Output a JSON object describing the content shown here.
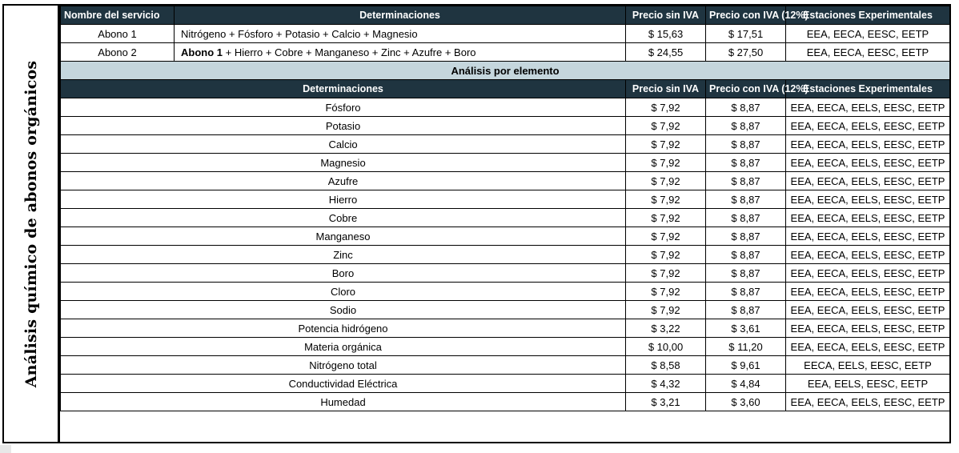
{
  "side_title": "Análisis químico de abonos orgánicos",
  "header1": {
    "service": "Nombre del servicio",
    "determinations": "Determinaciones",
    "price_no_iva": "Precio sin IVA",
    "price_iva": "Precio con IVA (12%)",
    "stations": "Estaciones Experimentales"
  },
  "abonos": [
    {
      "name": "Abono 1",
      "det_bold": "",
      "det": "Nitrógeno + Fósforo + Potasio + Calcio + Magnesio",
      "price": "$ 15,63",
      "price_iva": "$ 17,51",
      "stations": "EEA, EECA, EESC, EETP"
    },
    {
      "name": "Abono 2",
      "det_bold": "Abono 1",
      "det": " + Hierro + Cobre + Manganeso + Zinc + Azufre + Boro",
      "price": "$ 24,55",
      "price_iva": "$ 27,50",
      "stations": "EEA, EECA, EESC, EETP"
    }
  ],
  "section_title": "Análisis por elemento",
  "header2": {
    "determinations": "Determinaciones",
    "price_no_iva": "Precio sin IVA",
    "price_iva": "Precio con IVA (12%)",
    "stations": "Estaciones Experimentales"
  },
  "elements": [
    {
      "name": "Fósforo",
      "price": "$ 7,92",
      "price_iva": "$ 8,87",
      "stations": "EEA, EECA, EELS, EESC, EETP"
    },
    {
      "name": "Potasio",
      "price": "$ 7,92",
      "price_iva": "$ 8,87",
      "stations": "EEA, EECA, EELS, EESC, EETP"
    },
    {
      "name": "Calcio",
      "price": "$ 7,92",
      "price_iva": "$ 8,87",
      "stations": "EEA, EECA, EELS, EESC, EETP"
    },
    {
      "name": "Magnesio",
      "price": "$ 7,92",
      "price_iva": "$ 8,87",
      "stations": "EEA, EECA, EELS, EESC, EETP"
    },
    {
      "name": "Azufre",
      "price": "$ 7,92",
      "price_iva": "$ 8,87",
      "stations": "EEA, EECA, EELS, EESC, EETP"
    },
    {
      "name": "Hierro",
      "price": "$ 7,92",
      "price_iva": "$ 8,87",
      "stations": "EEA, EECA, EELS, EESC, EETP"
    },
    {
      "name": "Cobre",
      "price": "$ 7,92",
      "price_iva": "$ 8,87",
      "stations": "EEA, EECA, EELS, EESC, EETP"
    },
    {
      "name": "Manganeso",
      "price": "$ 7,92",
      "price_iva": "$ 8,87",
      "stations": "EEA, EECA, EELS, EESC, EETP"
    },
    {
      "name": "Zinc",
      "price": "$ 7,92",
      "price_iva": "$ 8,87",
      "stations": "EEA, EECA, EELS, EESC, EETP"
    },
    {
      "name": "Boro",
      "price": "$ 7,92",
      "price_iva": "$ 8,87",
      "stations": "EEA, EECA, EELS, EESC, EETP"
    },
    {
      "name": "Cloro",
      "price": "$ 7,92",
      "price_iva": "$ 8,87",
      "stations": "EEA, EECA, EELS, EESC, EETP"
    },
    {
      "name": "Sodio",
      "price": "$ 7,92",
      "price_iva": "$ 8,87",
      "stations": "EEA, EECA, EELS, EESC, EETP"
    },
    {
      "name": "Potencia hidrógeno",
      "price": "$ 3,22",
      "price_iva": "$ 3,61",
      "stations": "EEA, EECA, EELS, EESC, EETP"
    },
    {
      "name": "Materia orgánica",
      "price": "$ 10,00",
      "price_iva": "$ 11,20",
      "stations": "EEA, EECA, EELS, EESC, EETP"
    },
    {
      "name": "Nitrógeno total",
      "price": "$ 8,58",
      "price_iva": "$ 9,61",
      "stations": "EECA, EELS, EESC, EETP"
    },
    {
      "name": "Conductividad Eléctrica",
      "price": "$ 4,32",
      "price_iva": "$ 4,84",
      "stations": "EEA, EELS, EESC, EETP"
    },
    {
      "name": "Humedad",
      "price": "$ 3,21",
      "price_iva": "$ 3,60",
      "stations": "EEA, EECA, EELS, EESC, EETP"
    }
  ]
}
